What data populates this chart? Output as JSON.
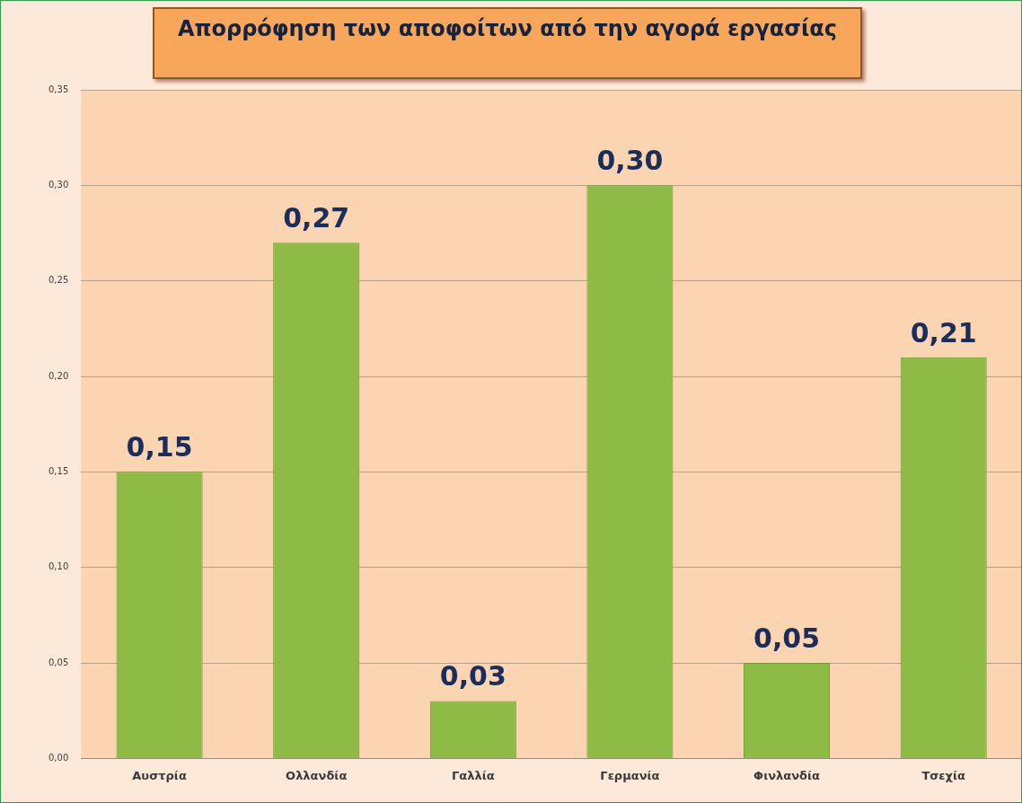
{
  "chart_data": {
    "type": "bar",
    "title": "Απορρόφηση των αποφοίτων από την αγορά εργασίας",
    "categories": [
      "Αυστρία",
      "Ολλανδία",
      "Γαλλία",
      "Γερμανία",
      "Φινλανδία",
      "Τσεχία"
    ],
    "values": [
      0.15,
      0.27,
      0.03,
      0.3,
      0.05,
      0.21
    ],
    "value_labels": [
      "0,15",
      "0,27",
      "0,03",
      "0,30",
      "0,05",
      "0,21"
    ],
    "color": "#8dbb45",
    "ylim": [
      0,
      0.35
    ],
    "yticks": [
      {
        "value": 0,
        "label": "0,00"
      },
      {
        "value": 0.05,
        "label": "0,05"
      },
      {
        "value": 0.1,
        "label": "0,10"
      },
      {
        "value": 0.15,
        "label": "0,15"
      },
      {
        "value": 0.2,
        "label": "0,20"
      },
      {
        "value": 0.25,
        "label": "0,25"
      },
      {
        "value": 0.3,
        "label": "0,30"
      },
      {
        "value": 0.35,
        "label": "0,35"
      }
    ],
    "grid": "y",
    "legend": false
  }
}
